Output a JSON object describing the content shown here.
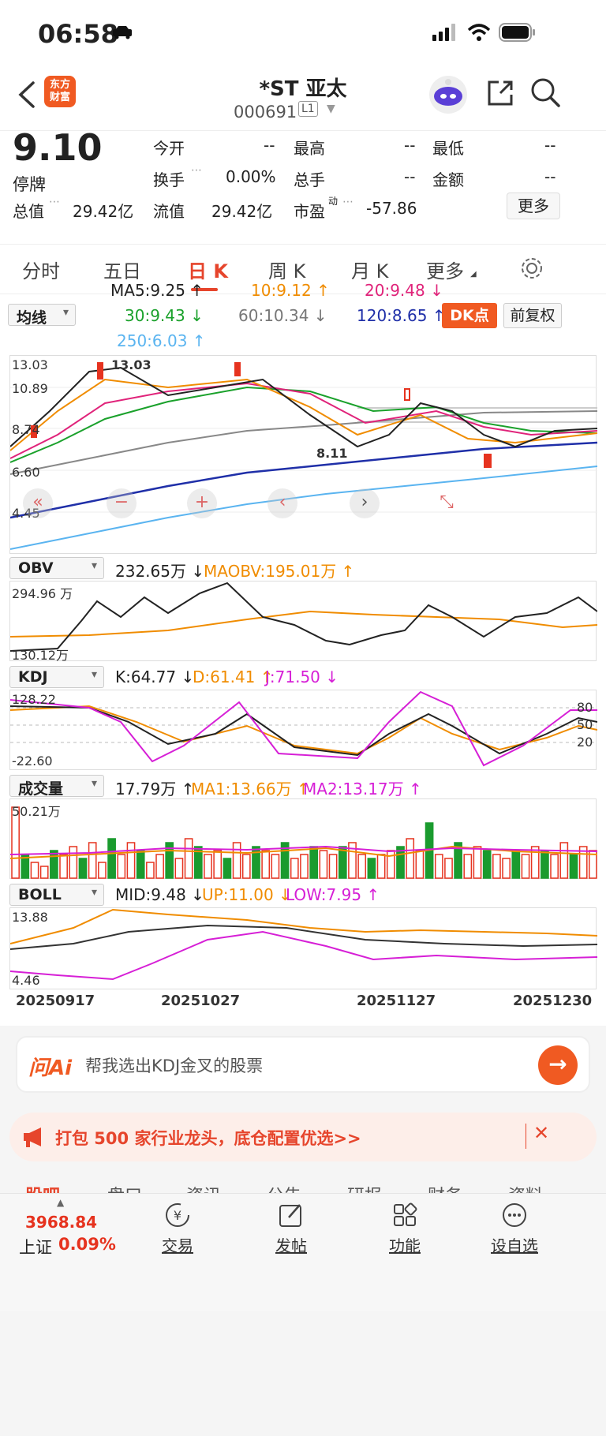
{
  "status_bar": {
    "time": "06:58"
  },
  "nav": {
    "logo_text": "东方\n财富",
    "title": "*ST 亚太",
    "code": "000691",
    "level": "L1"
  },
  "quote": {
    "price": "9.10",
    "state": "停牌",
    "open_label": "今开",
    "open_value": "--",
    "high_label": "最高",
    "high_value": "--",
    "low_label": "最低",
    "low_value": "--",
    "turnover_label": "换手",
    "turnover_value": "0.00%",
    "volume_label": "总手",
    "volume_value": "--",
    "amount_label": "金额",
    "amount_value": "--",
    "mcap_label": "总值",
    "mcap_value": "29.42亿",
    "float_label": "流值",
    "float_value": "29.42亿",
    "pe_label": "市盈",
    "pe_sup": "动",
    "pe_value": "-57.86",
    "more_button": "更多"
  },
  "tabs": [
    "分时",
    "五日",
    "日 K",
    "周 K",
    "月 K",
    "更多"
  ],
  "active_tab": "日 K",
  "ma": {
    "selector": "均线",
    "ma5": "MA5:9.25 ↑",
    "ma10": "10:9.12 ↑",
    "ma20": "20:9.48 ↓",
    "ma30": "30:9.43 ↓",
    "ma60": "60:10.34 ↓",
    "ma120": "120:8.65 ↑",
    "ma250": "250:6.03 ↑",
    "dk_button": "DK点",
    "fq_button": "前复权"
  },
  "colors": {
    "up": "#e6331f",
    "down": "#1a9b2e",
    "ma5": "#222222",
    "ma10": "#f08c00",
    "ma20": "#e0237a",
    "ma30": "#1aa12b",
    "ma60": "#888888",
    "ma120": "#1f2fa8",
    "ma250": "#5ab4f0",
    "accent": "#f05a22"
  },
  "kline": {
    "y_labels": [
      "13.03",
      "10.89",
      "8.74",
      "6.60",
      "4.45"
    ],
    "high_annot": "13.03",
    "low_annot": "8.11",
    "controls": [
      "«",
      "−",
      "+",
      "‹",
      "›",
      "⤡"
    ]
  },
  "obv": {
    "selector": "OBV",
    "value": "232.65万 ↓",
    "ma": "MAOBV:195.01万 ↑",
    "y_top": "294.96 万",
    "y_bottom": "130.12万"
  },
  "kdj": {
    "selector": "KDJ",
    "k": "K:64.77 ↓",
    "d": "D:61.41 ↑",
    "j": "J:71.50 ↓",
    "y_top": "128.22",
    "y_bottom": "-22.60",
    "levels": [
      "80",
      "50",
      "20"
    ]
  },
  "vol": {
    "selector": "成交量",
    "value": "17.79万 ↑",
    "ma1": "MA1:13.66万 ↑",
    "ma2": "MA2:13.17万 ↑",
    "y_top": "50.21万"
  },
  "boll": {
    "selector": "BOLL",
    "mid": "MID:9.48 ↓",
    "up": "UP:11.00 ↓",
    "low": "LOW:7.95 ↑",
    "y_top": "13.88",
    "y_bottom": "4.46"
  },
  "dates": [
    "20250917",
    "20251027",
    "20251127",
    "20251230"
  ],
  "ai_box": {
    "brand": "问Ai",
    "placeholder": "帮我选出KDJ金叉的股票"
  },
  "banner": {
    "text": "打包 500 家行业龙头，底仓配置优选>>"
  },
  "hidden_tabs": [
    "股吧",
    "盘口",
    "资讯",
    "公告",
    "研报",
    "财务",
    "资料"
  ],
  "bottom_bar": {
    "index_value": "3968.84",
    "index_name": "上证",
    "index_change": "0.09%",
    "trade": "交易",
    "post": "发帖",
    "func": "功能",
    "watch": "设自选"
  }
}
